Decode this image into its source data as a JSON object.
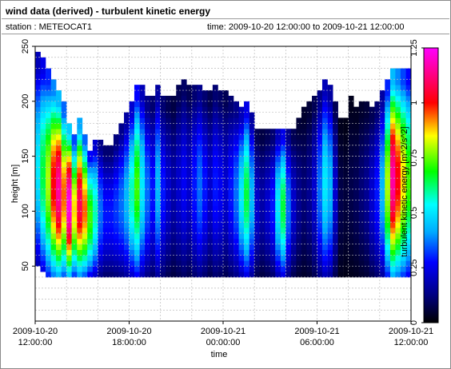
{
  "header": {
    "title": "wind data (derived) - turbulent kinetic energy",
    "station": "station : METEOCAT1",
    "time_range": "time: 2009-10-20 12:00:00 to 2009-10-21 12:00:00"
  },
  "chart_data": {
    "type": "heatmap",
    "title": "wind data (derived) - turbulent kinetic energy",
    "xlabel": "time",
    "ylabel": "height [m]",
    "colorbar_label": "turbulent kinetic energy [m^2/s^2]",
    "x_ticks": [
      {
        "line1": "2009-10-20",
        "line2": "12:00:00",
        "hours": 0
      },
      {
        "line1": "2009-10-20",
        "line2": "18:00:00",
        "hours": 6
      },
      {
        "line1": "2009-10-21",
        "line2": "00:00:00",
        "hours": 12
      },
      {
        "line1": "2009-10-21",
        "line2": "06:00:00",
        "hours": 18
      },
      {
        "line1": "2009-10-21",
        "line2": "12:00:00",
        "hours": 24
      }
    ],
    "xlim_hours": [
      0,
      24
    ],
    "ylim": [
      0,
      250
    ],
    "y_ticks": [
      50,
      100,
      150,
      200,
      250
    ],
    "colorbar_range": [
      0,
      1.25
    ],
    "colorbar_ticks": [
      "0",
      "0.25",
      "0.5",
      "0.75",
      "1",
      "1.25"
    ],
    "colorscale": [
      "#000000",
      "#000080",
      "#0000ff",
      "#00aaff",
      "#00ffff",
      "#00ff00",
      "#ffff00",
      "#ff0000",
      "#ff00ff"
    ],
    "grid": true,
    "columns": [
      {
        "t": 0.0,
        "bottom": 50,
        "top": 245,
        "tke": 0.35
      },
      {
        "t": 0.33,
        "bottom": 45,
        "top": 240,
        "tke": 0.45
      },
      {
        "t": 0.67,
        "bottom": 40,
        "top": 230,
        "tke": 0.55
      },
      {
        "t": 1.0,
        "bottom": 40,
        "top": 220,
        "tke": 0.7
      },
      {
        "t": 1.33,
        "bottom": 40,
        "top": 210,
        "tke": 0.8
      },
      {
        "t": 1.67,
        "bottom": 40,
        "top": 200,
        "tke": 0.65
      },
      {
        "t": 2.0,
        "bottom": 40,
        "top": 180,
        "tke": 0.85
      },
      {
        "t": 2.33,
        "bottom": 40,
        "top": 170,
        "tke": 0.6
      },
      {
        "t": 2.67,
        "bottom": 40,
        "top": 185,
        "tke": 0.75
      },
      {
        "t": 3.0,
        "bottom": 40,
        "top": 170,
        "tke": 0.65
      },
      {
        "t": 3.33,
        "bottom": 40,
        "top": 155,
        "tke": 0.5
      },
      {
        "t": 3.67,
        "bottom": 40,
        "top": 165,
        "tke": 0.4
      },
      {
        "t": 4.0,
        "bottom": 40,
        "top": 165,
        "tke": 0.25
      },
      {
        "t": 4.33,
        "bottom": 40,
        "top": 160,
        "tke": 0.2
      },
      {
        "t": 4.67,
        "bottom": 40,
        "top": 160,
        "tke": 0.2
      },
      {
        "t": 5.0,
        "bottom": 40,
        "top": 170,
        "tke": 0.22
      },
      {
        "t": 5.33,
        "bottom": 40,
        "top": 180,
        "tke": 0.25
      },
      {
        "t": 5.67,
        "bottom": 40,
        "top": 190,
        "tke": 0.3
      },
      {
        "t": 6.0,
        "bottom": 40,
        "top": 200,
        "tke": 0.4
      },
      {
        "t": 6.33,
        "bottom": 40,
        "top": 215,
        "tke": 0.5
      },
      {
        "t": 6.67,
        "bottom": 40,
        "top": 215,
        "tke": 0.35
      },
      {
        "t": 7.0,
        "bottom": 40,
        "top": 205,
        "tke": 0.25
      },
      {
        "t": 7.33,
        "bottom": 40,
        "top": 205,
        "tke": 0.2
      },
      {
        "t": 7.67,
        "bottom": 40,
        "top": 215,
        "tke": 0.3
      },
      {
        "t": 8.0,
        "bottom": 40,
        "top": 205,
        "tke": 0.2
      },
      {
        "t": 8.33,
        "bottom": 40,
        "top": 205,
        "tke": 0.15
      },
      {
        "t": 8.67,
        "bottom": 40,
        "top": 205,
        "tke": 0.12
      },
      {
        "t": 9.0,
        "bottom": 40,
        "top": 215,
        "tke": 0.15
      },
      {
        "t": 9.33,
        "bottom": 40,
        "top": 220,
        "tke": 0.18
      },
      {
        "t": 9.67,
        "bottom": 40,
        "top": 215,
        "tke": 0.15
      },
      {
        "t": 10.0,
        "bottom": 40,
        "top": 215,
        "tke": 0.2
      },
      {
        "t": 10.33,
        "bottom": 40,
        "top": 215,
        "tke": 0.25
      },
      {
        "t": 10.67,
        "bottom": 40,
        "top": 210,
        "tke": 0.2
      },
      {
        "t": 11.0,
        "bottom": 40,
        "top": 210,
        "tke": 0.15
      },
      {
        "t": 11.33,
        "bottom": 40,
        "top": 215,
        "tke": 0.2
      },
      {
        "t": 11.67,
        "bottom": 40,
        "top": 210,
        "tke": 0.18
      },
      {
        "t": 12.0,
        "bottom": 40,
        "top": 210,
        "tke": 0.15
      },
      {
        "t": 12.33,
        "bottom": 40,
        "top": 205,
        "tke": 0.2
      },
      {
        "t": 12.67,
        "bottom": 40,
        "top": 200,
        "tke": 0.25
      },
      {
        "t": 13.0,
        "bottom": 40,
        "top": 195,
        "tke": 0.35
      },
      {
        "t": 13.33,
        "bottom": 40,
        "top": 200,
        "tke": 0.45
      },
      {
        "t": 13.67,
        "bottom": 40,
        "top": 190,
        "tke": 0.3
      },
      {
        "t": 14.0,
        "bottom": 40,
        "top": 175,
        "tke": 0.15
      },
      {
        "t": 14.33,
        "bottom": 40,
        "top": 175,
        "tke": 0.12
      },
      {
        "t": 14.67,
        "bottom": 40,
        "top": 175,
        "tke": 0.15
      },
      {
        "t": 15.0,
        "bottom": 40,
        "top": 175,
        "tke": 0.2
      },
      {
        "t": 15.33,
        "bottom": 40,
        "top": 175,
        "tke": 0.35
      },
      {
        "t": 15.67,
        "bottom": 40,
        "top": 175,
        "tke": 0.45
      },
      {
        "t": 16.0,
        "bottom": 40,
        "top": 175,
        "tke": 0.25
      },
      {
        "t": 16.33,
        "bottom": 40,
        "top": 175,
        "tke": 0.15
      },
      {
        "t": 16.67,
        "bottom": 40,
        "top": 185,
        "tke": 0.1
      },
      {
        "t": 17.0,
        "bottom": 40,
        "top": 195,
        "tke": 0.08
      },
      {
        "t": 17.33,
        "bottom": 40,
        "top": 200,
        "tke": 0.1
      },
      {
        "t": 17.67,
        "bottom": 40,
        "top": 205,
        "tke": 0.15
      },
      {
        "t": 18.0,
        "bottom": 40,
        "top": 210,
        "tke": 0.25
      },
      {
        "t": 18.33,
        "bottom": 40,
        "top": 220,
        "tke": 0.35
      },
      {
        "t": 18.67,
        "bottom": 40,
        "top": 215,
        "tke": 0.3
      },
      {
        "t": 19.0,
        "bottom": 40,
        "top": 200,
        "tke": 0.15
      },
      {
        "t": 19.33,
        "bottom": 40,
        "top": 185,
        "tke": 0.05
      },
      {
        "t": 19.67,
        "bottom": 40,
        "top": 185,
        "tke": 0.04
      },
      {
        "t": 20.0,
        "bottom": 40,
        "top": 205,
        "tke": 0.05
      },
      {
        "t": 20.33,
        "bottom": 40,
        "top": 195,
        "tke": 0.06
      },
      {
        "t": 20.67,
        "bottom": 40,
        "top": 200,
        "tke": 0.08
      },
      {
        "t": 21.0,
        "bottom": 40,
        "top": 200,
        "tke": 0.1
      },
      {
        "t": 21.33,
        "bottom": 40,
        "top": 195,
        "tke": 0.15
      },
      {
        "t": 21.67,
        "bottom": 40,
        "top": 200,
        "tke": 0.2
      },
      {
        "t": 22.0,
        "bottom": 40,
        "top": 210,
        "tke": 0.3
      },
      {
        "t": 22.33,
        "bottom": 40,
        "top": 220,
        "tke": 0.55
      },
      {
        "t": 22.67,
        "bottom": 40,
        "top": 230,
        "tke": 0.8
      },
      {
        "t": 23.0,
        "bottom": 40,
        "top": 230,
        "tke": 0.7
      },
      {
        "t": 23.33,
        "bottom": 40,
        "top": 230,
        "tke": 0.6
      },
      {
        "t": 23.67,
        "bottom": 40,
        "top": 230,
        "tke": 0.5
      }
    ]
  }
}
